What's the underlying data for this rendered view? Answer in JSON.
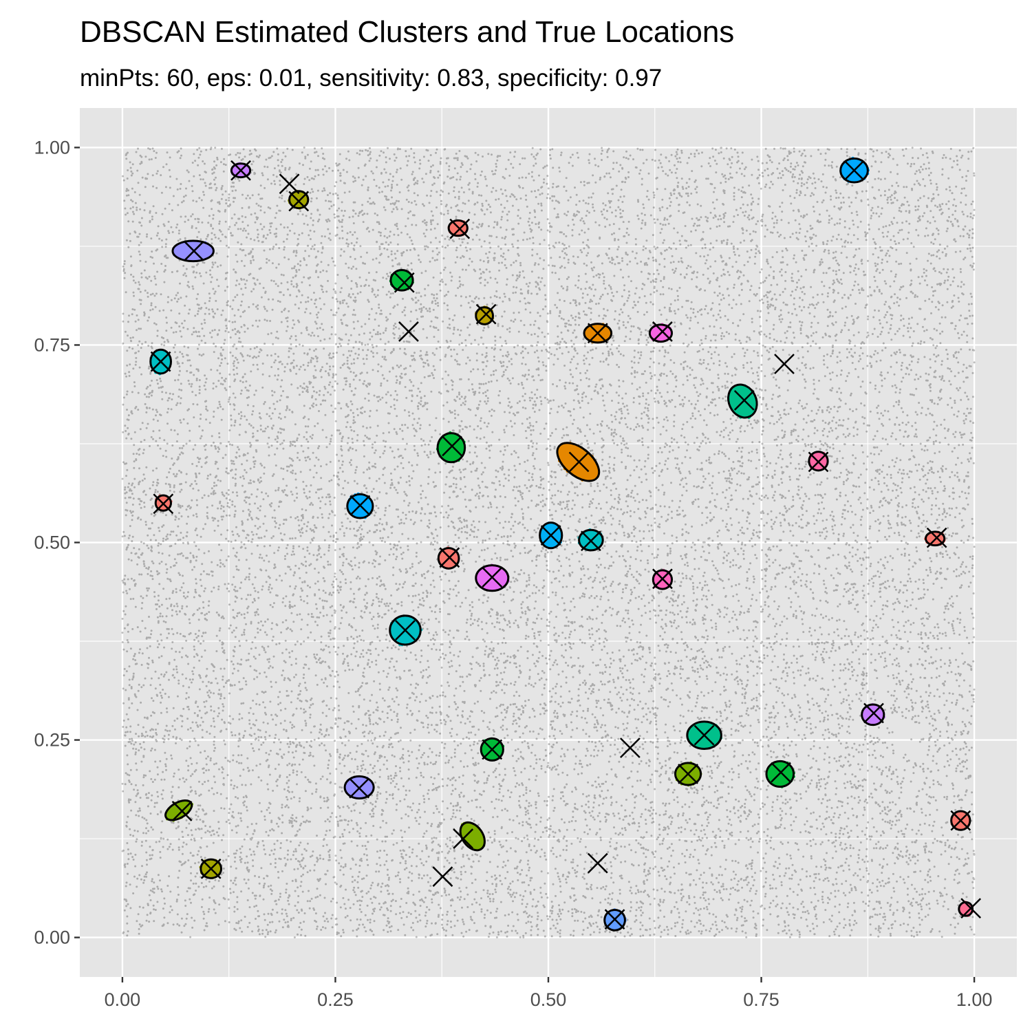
{
  "chart_data": {
    "type": "scatter",
    "title": "DBSCAN Estimated Clusters and True Locations",
    "subtitle": "minPts: 60, eps: 0.01, sensitivity: 0.83, specificity: 0.97",
    "xlabel": "",
    "ylabel": "",
    "xlim": [
      -0.05,
      1.05
    ],
    "ylim": [
      -0.05,
      1.05
    ],
    "x_ticks": [
      "0.00",
      "0.25",
      "0.50",
      "0.75",
      "1.00"
    ],
    "y_ticks": [
      "0.00",
      "0.25",
      "0.50",
      "0.75",
      "1.00"
    ],
    "grid": true,
    "background_points": {
      "count": 18000,
      "x_range": [
        0,
        1
      ],
      "y_range": [
        0,
        1
      ],
      "color": "#000000",
      "alpha": 0.25
    },
    "clusters": [
      {
        "x": 0.139,
        "y": 0.971,
        "rx": 0.011,
        "ry": 0.008,
        "angle": 0,
        "color": "#C77CFF"
      },
      {
        "x": 0.207,
        "y": 0.934,
        "rx": 0.011,
        "ry": 0.01,
        "angle": 0,
        "color": "#A3A500"
      },
      {
        "x": 0.083,
        "y": 0.869,
        "rx": 0.024,
        "ry": 0.012,
        "angle": 0,
        "color": "#9590FF"
      },
      {
        "x": 0.394,
        "y": 0.898,
        "rx": 0.011,
        "ry": 0.009,
        "angle": 0,
        "color": "#F8766D"
      },
      {
        "x": 0.328,
        "y": 0.832,
        "rx": 0.013,
        "ry": 0.012,
        "angle": 0,
        "color": "#00BA38"
      },
      {
        "x": 0.425,
        "y": 0.787,
        "rx": 0.01,
        "ry": 0.01,
        "angle": 0,
        "color": "#B79F00"
      },
      {
        "x": 0.558,
        "y": 0.765,
        "rx": 0.016,
        "ry": 0.011,
        "angle": 0,
        "color": "#E58700"
      },
      {
        "x": 0.632,
        "y": 0.765,
        "rx": 0.013,
        "ry": 0.01,
        "angle": 0,
        "color": "#F564E3"
      },
      {
        "x": 0.045,
        "y": 0.729,
        "rx": 0.012,
        "ry": 0.014,
        "angle": 0,
        "color": "#00BFC4"
      },
      {
        "x": 0.728,
        "y": 0.679,
        "rx": 0.016,
        "ry": 0.02,
        "angle": -25,
        "color": "#00C08B"
      },
      {
        "x": 0.386,
        "y": 0.62,
        "rx": 0.016,
        "ry": 0.017,
        "angle": 0,
        "color": "#00BA38"
      },
      {
        "x": 0.535,
        "y": 0.602,
        "rx": 0.029,
        "ry": 0.016,
        "angle": 40,
        "color": "#E58700"
      },
      {
        "x": 0.817,
        "y": 0.603,
        "rx": 0.011,
        "ry": 0.011,
        "angle": 0,
        "color": "#FF67A4"
      },
      {
        "x": 0.048,
        "y": 0.55,
        "rx": 0.009,
        "ry": 0.009,
        "angle": 0,
        "color": "#F8766D"
      },
      {
        "x": 0.279,
        "y": 0.546,
        "rx": 0.015,
        "ry": 0.014,
        "angle": 0,
        "color": "#00A9FF"
      },
      {
        "x": 0.503,
        "y": 0.509,
        "rx": 0.013,
        "ry": 0.015,
        "angle": 0,
        "color": "#00B0F6"
      },
      {
        "x": 0.55,
        "y": 0.503,
        "rx": 0.014,
        "ry": 0.012,
        "angle": 0,
        "color": "#00BFC4"
      },
      {
        "x": 0.954,
        "y": 0.505,
        "rx": 0.011,
        "ry": 0.008,
        "angle": 0,
        "color": "#F8766D"
      },
      {
        "x": 0.383,
        "y": 0.48,
        "rx": 0.012,
        "ry": 0.012,
        "angle": 0,
        "color": "#F8766D"
      },
      {
        "x": 0.434,
        "y": 0.455,
        "rx": 0.019,
        "ry": 0.015,
        "angle": 0,
        "color": "#E76BF3"
      },
      {
        "x": 0.634,
        "y": 0.453,
        "rx": 0.011,
        "ry": 0.011,
        "angle": 0,
        "color": "#FF62BC"
      },
      {
        "x": 0.332,
        "y": 0.389,
        "rx": 0.018,
        "ry": 0.017,
        "angle": 0,
        "color": "#00BFC4"
      },
      {
        "x": 0.881,
        "y": 0.282,
        "rx": 0.013,
        "ry": 0.012,
        "angle": 0,
        "color": "#C77CFF"
      },
      {
        "x": 0.683,
        "y": 0.256,
        "rx": 0.02,
        "ry": 0.016,
        "angle": 0,
        "color": "#00C08B"
      },
      {
        "x": 0.434,
        "y": 0.238,
        "rx": 0.013,
        "ry": 0.013,
        "angle": 0,
        "color": "#00BA38"
      },
      {
        "x": 0.664,
        "y": 0.207,
        "rx": 0.015,
        "ry": 0.013,
        "angle": 0,
        "color": "#7CAE00"
      },
      {
        "x": 0.772,
        "y": 0.207,
        "rx": 0.016,
        "ry": 0.015,
        "angle": 0,
        "color": "#00BA38"
      },
      {
        "x": 0.278,
        "y": 0.19,
        "rx": 0.017,
        "ry": 0.013,
        "angle": 0,
        "color": "#9590FF"
      },
      {
        "x": 0.066,
        "y": 0.161,
        "rx": 0.017,
        "ry": 0.009,
        "angle": -30,
        "color": "#7CAE00"
      },
      {
        "x": 0.411,
        "y": 0.128,
        "rx": 0.012,
        "ry": 0.018,
        "angle": -35,
        "color": "#7CAE00"
      },
      {
        "x": 0.104,
        "y": 0.087,
        "rx": 0.012,
        "ry": 0.011,
        "angle": 0,
        "color": "#A3A500"
      },
      {
        "x": 0.984,
        "y": 0.148,
        "rx": 0.011,
        "ry": 0.011,
        "angle": 0,
        "color": "#F8766D"
      },
      {
        "x": 0.578,
        "y": 0.022,
        "rx": 0.012,
        "ry": 0.012,
        "angle": 0,
        "color": "#619CFF"
      },
      {
        "x": 0.99,
        "y": 0.036,
        "rx": 0.008,
        "ry": 0.008,
        "angle": 0,
        "color": "#FF6C91"
      },
      {
        "x": 0.859,
        "y": 0.971,
        "rx": 0.016,
        "ry": 0.014,
        "angle": 0,
        "color": "#00A9FF"
      }
    ],
    "true_locations": [
      {
        "x": 0.139,
        "y": 0.971
      },
      {
        "x": 0.196,
        "y": 0.954
      },
      {
        "x": 0.207,
        "y": 0.932
      },
      {
        "x": 0.084,
        "y": 0.869
      },
      {
        "x": 0.396,
        "y": 0.897
      },
      {
        "x": 0.331,
        "y": 0.829
      },
      {
        "x": 0.427,
        "y": 0.789
      },
      {
        "x": 0.336,
        "y": 0.767
      },
      {
        "x": 0.558,
        "y": 0.765
      },
      {
        "x": 0.634,
        "y": 0.767
      },
      {
        "x": 0.045,
        "y": 0.729
      },
      {
        "x": 0.777,
        "y": 0.726
      },
      {
        "x": 0.73,
        "y": 0.68
      },
      {
        "x": 0.387,
        "y": 0.622
      },
      {
        "x": 0.536,
        "y": 0.602
      },
      {
        "x": 0.817,
        "y": 0.602
      },
      {
        "x": 0.048,
        "y": 0.549
      },
      {
        "x": 0.279,
        "y": 0.547
      },
      {
        "x": 0.503,
        "y": 0.509
      },
      {
        "x": 0.55,
        "y": 0.502
      },
      {
        "x": 0.956,
        "y": 0.506
      },
      {
        "x": 0.384,
        "y": 0.481
      },
      {
        "x": 0.434,
        "y": 0.456
      },
      {
        "x": 0.634,
        "y": 0.454
      },
      {
        "x": 0.332,
        "y": 0.389
      },
      {
        "x": 0.882,
        "y": 0.284
      },
      {
        "x": 0.683,
        "y": 0.256
      },
      {
        "x": 0.596,
        "y": 0.24
      },
      {
        "x": 0.434,
        "y": 0.238
      },
      {
        "x": 0.664,
        "y": 0.207
      },
      {
        "x": 0.773,
        "y": 0.209
      },
      {
        "x": 0.278,
        "y": 0.189
      },
      {
        "x": 0.07,
        "y": 0.16
      },
      {
        "x": 0.4,
        "y": 0.125
      },
      {
        "x": 0.104,
        "y": 0.087
      },
      {
        "x": 0.984,
        "y": 0.148
      },
      {
        "x": 0.558,
        "y": 0.094
      },
      {
        "x": 0.376,
        "y": 0.077
      },
      {
        "x": 0.578,
        "y": 0.023
      },
      {
        "x": 0.996,
        "y": 0.037
      },
      {
        "x": 0.859,
        "y": 0.971
      }
    ]
  }
}
